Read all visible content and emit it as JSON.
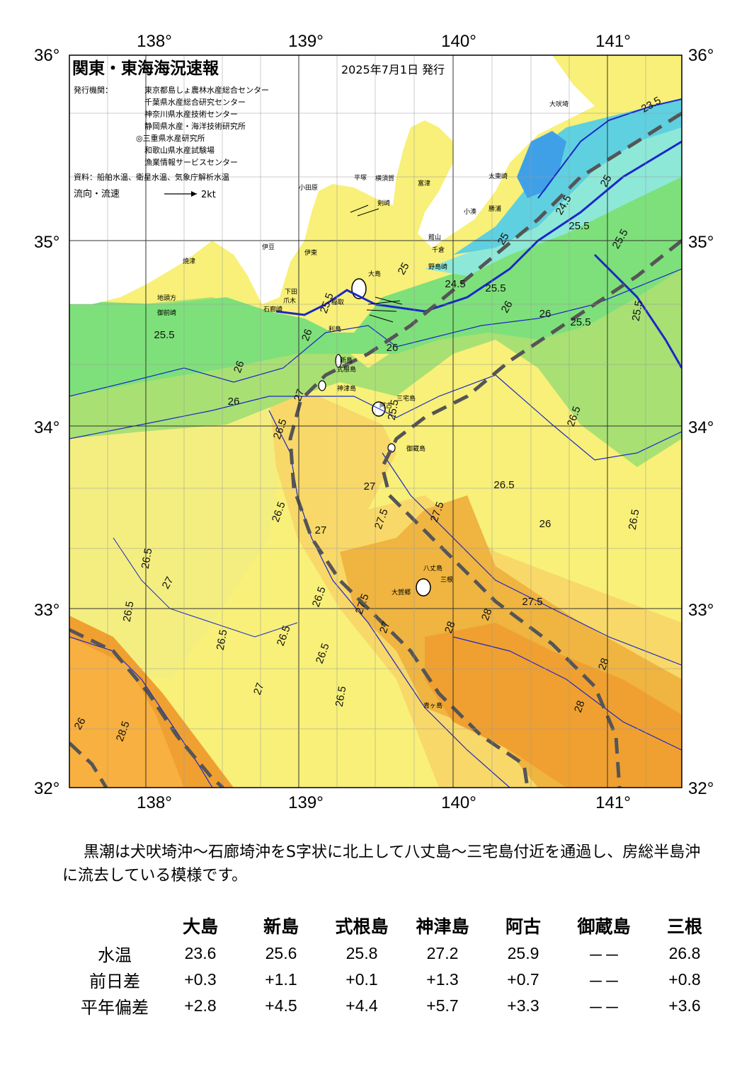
{
  "header": {
    "title": "関東・東海海況速報",
    "issued": "2025年7月1日 発行",
    "publisher_label": "発行機関：",
    "publishers": [
      "東京都島しょ農林水産総合センター",
      "千葉県水産総合研究センター",
      "神奈川県水産技術センター",
      "静岡県水産・海洋技術研究所",
      "◎三重県水産研究所",
      "和歌山県水産試験場",
      "漁業情報サービスセンター"
    ],
    "source": "資料：船舶水温、衛星水温、気象庁解析水温",
    "legend_label": "流向・流速",
    "legend_scale": "2kt"
  },
  "axes": {
    "lon_top": [
      "138°",
      "139°",
      "140°",
      "141°"
    ],
    "lon_bottom": [
      "138°",
      "139°",
      "140°",
      "141°"
    ],
    "lat_left": [
      "36°",
      "35°",
      "34°",
      "33°",
      "32°"
    ],
    "lat_right": [
      "36°",
      "35°",
      "34°",
      "33°",
      "32°"
    ]
  },
  "colors": {
    "sst_23": "#3fa0e8",
    "sst_24": "#5ed0e0",
    "sst_245": "#8ee8d8",
    "sst_25": "#7ee07a",
    "sst_255": "#a8e074",
    "sst_26": "#e8f070",
    "sst_265": "#f8f078",
    "sst_27": "#f8d868",
    "sst_275": "#f0b440",
    "sst_28": "#f0a030",
    "isotherm": "#1a28c8",
    "kuroshio_axis": "#555555"
  },
  "isotherm_labels": [
    {
      "text": "23.5"
    },
    {
      "text": "24.5"
    },
    {
      "text": "25"
    },
    {
      "text": "25"
    },
    {
      "text": "25"
    },
    {
      "text": "25.5"
    },
    {
      "text": "25.5"
    },
    {
      "text": "25.5"
    },
    {
      "text": "25.5"
    },
    {
      "text": "25.5"
    },
    {
      "text": "25.5"
    },
    {
      "text": "25.5"
    },
    {
      "text": "25.5"
    },
    {
      "text": "24.5"
    },
    {
      "text": "26"
    },
    {
      "text": "26"
    },
    {
      "text": "26"
    },
    {
      "text": "26"
    },
    {
      "text": "26"
    },
    {
      "text": "26"
    },
    {
      "text": "26"
    },
    {
      "text": "26.5"
    },
    {
      "text": "26.5"
    },
    {
      "text": "26.5"
    },
    {
      "text": "26.5"
    },
    {
      "text": "26.5"
    },
    {
      "text": "26.5"
    },
    {
      "text": "26.5"
    },
    {
      "text": "26.5"
    },
    {
      "text": "26.5"
    },
    {
      "text": "26.5"
    },
    {
      "text": "26.5"
    },
    {
      "text": "26.5"
    },
    {
      "text": "27"
    },
    {
      "text": "27"
    },
    {
      "text": "27"
    },
    {
      "text": "27"
    },
    {
      "text": "27"
    },
    {
      "text": "27"
    },
    {
      "text": "27.5"
    },
    {
      "text": "27.5"
    },
    {
      "text": "27.5"
    },
    {
      "text": "27.5"
    },
    {
      "text": "28"
    },
    {
      "text": "28"
    },
    {
      "text": "28"
    },
    {
      "text": "28"
    },
    {
      "text": "28.5"
    },
    {
      "text": "26"
    }
  ],
  "places": [
    "大吠埼",
    "太東崎",
    "勝浦",
    "小湊",
    "富津",
    "横須賀",
    "平塚",
    "小田原",
    "剣崎",
    "館山",
    "千倉",
    "野島崎",
    "伊東",
    "稲取",
    "下田",
    "爪木",
    "石廊崎",
    "焼津",
    "御前崎",
    "地頭方",
    "大島",
    "利島",
    "新島",
    "式根島",
    "神津島",
    "三宅島",
    "阿古",
    "御蔵島",
    "八丈島",
    "三根",
    "大賀郷",
    "青ヶ島",
    "伊豆"
  ],
  "summary": "黒潮は犬吠埼沖～石廊埼沖をS字状に北上して八丈島～三宅島付近を通過し、房総半島沖に流去している模様です。",
  "table": {
    "columns": [
      "大島",
      "新島",
      "式根島",
      "神津島",
      "阿古",
      "御蔵島",
      "三根"
    ],
    "rows": [
      {
        "label": "水温",
        "values": [
          "23.6",
          "25.6",
          "25.8",
          "27.2",
          "25.9",
          "－－",
          "26.8"
        ]
      },
      {
        "label": "前日差",
        "values": [
          "+0.3",
          "+1.1",
          "+0.1",
          "+1.3",
          "+0.7",
          "－－",
          "+0.8"
        ]
      },
      {
        "label": "平年偏差",
        "values": [
          "+2.8",
          "+4.5",
          "+4.4",
          "+5.7",
          "+3.3",
          "－－",
          "+3.6"
        ]
      }
    ]
  }
}
